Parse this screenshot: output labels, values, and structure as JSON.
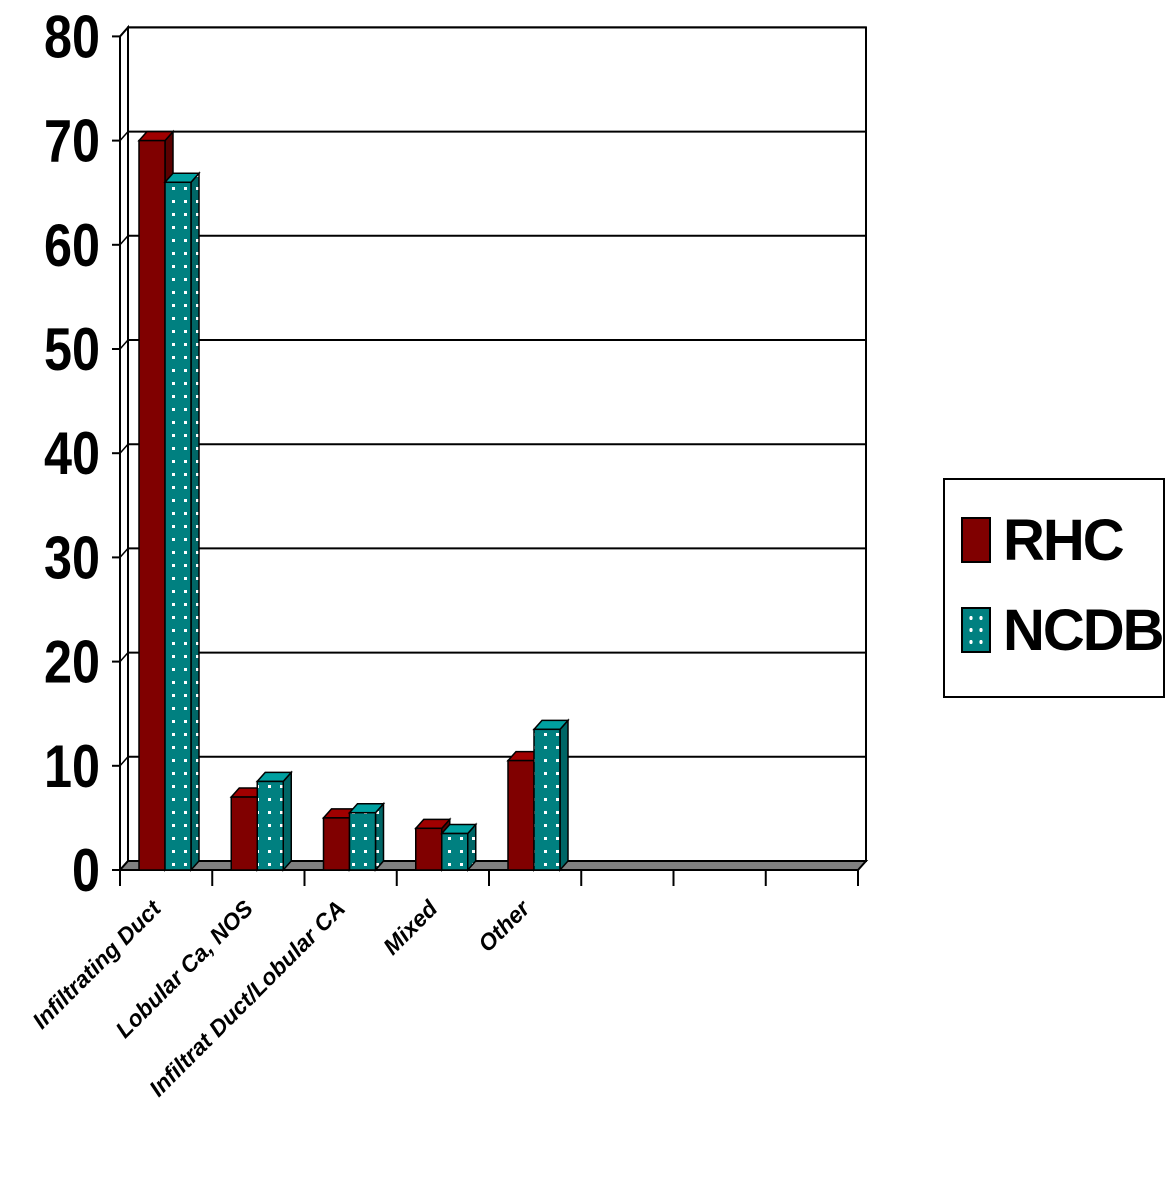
{
  "chart_data": {
    "type": "bar",
    "title": "",
    "xlabel": "",
    "ylabel": "",
    "categories": [
      "Infiltrating Duct",
      "Lobular Ca, NOS",
      "Infiltrat Duct/Lobular CA",
      "Mixed",
      "Other",
      "",
      "",
      ""
    ],
    "series": [
      {
        "name": "RHC",
        "values": [
          70,
          7,
          5,
          4,
          10.5,
          null,
          null,
          null
        ],
        "color": "#800000"
      },
      {
        "name": "NCDB",
        "values": [
          66,
          8.5,
          5.5,
          3.5,
          13.5,
          null,
          null,
          null
        ],
        "color": "#008080",
        "pattern": "white-dots"
      }
    ],
    "ylim": [
      0,
      80
    ],
    "yticks": [
      0,
      10,
      20,
      30,
      40,
      50,
      60,
      70,
      80
    ],
    "grid": true,
    "legend_position": "right",
    "style_3d": true
  }
}
